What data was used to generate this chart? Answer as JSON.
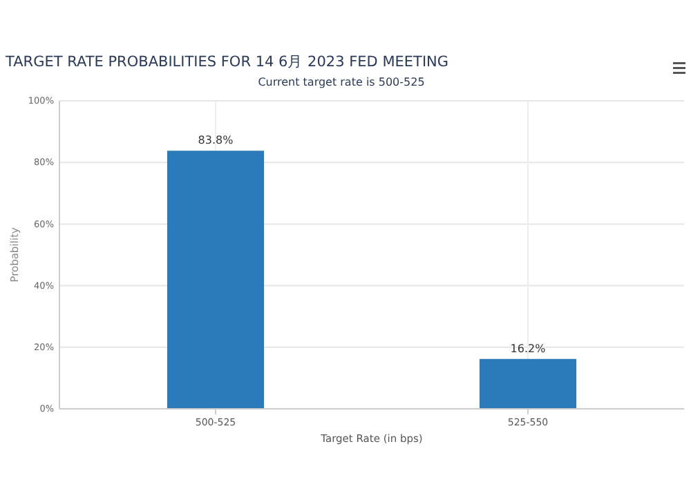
{
  "chart_data": {
    "type": "bar",
    "title": "TARGET RATE PROBABILITIES FOR 14 6月 2023 FED MEETING",
    "subtitle": "Current target rate is 500-525",
    "xlabel": "Target Rate (in bps)",
    "ylabel": "Probability",
    "categories": [
      "500-525",
      "525-550"
    ],
    "values": [
      83.8,
      16.2
    ],
    "color": "#2b7bba",
    "value_labels": [
      "83.8%",
      "16.2%"
    ],
    "ylim": [
      0,
      100
    ],
    "yticks": [
      {
        "value": 0,
        "label": "0%"
      },
      {
        "value": 20,
        "label": "20%"
      },
      {
        "value": 40,
        "label": "40%"
      },
      {
        "value": 60,
        "label": "60%"
      },
      {
        "value": 80,
        "label": "80%"
      },
      {
        "value": 100,
        "label": "100%"
      }
    ],
    "grid": true
  }
}
